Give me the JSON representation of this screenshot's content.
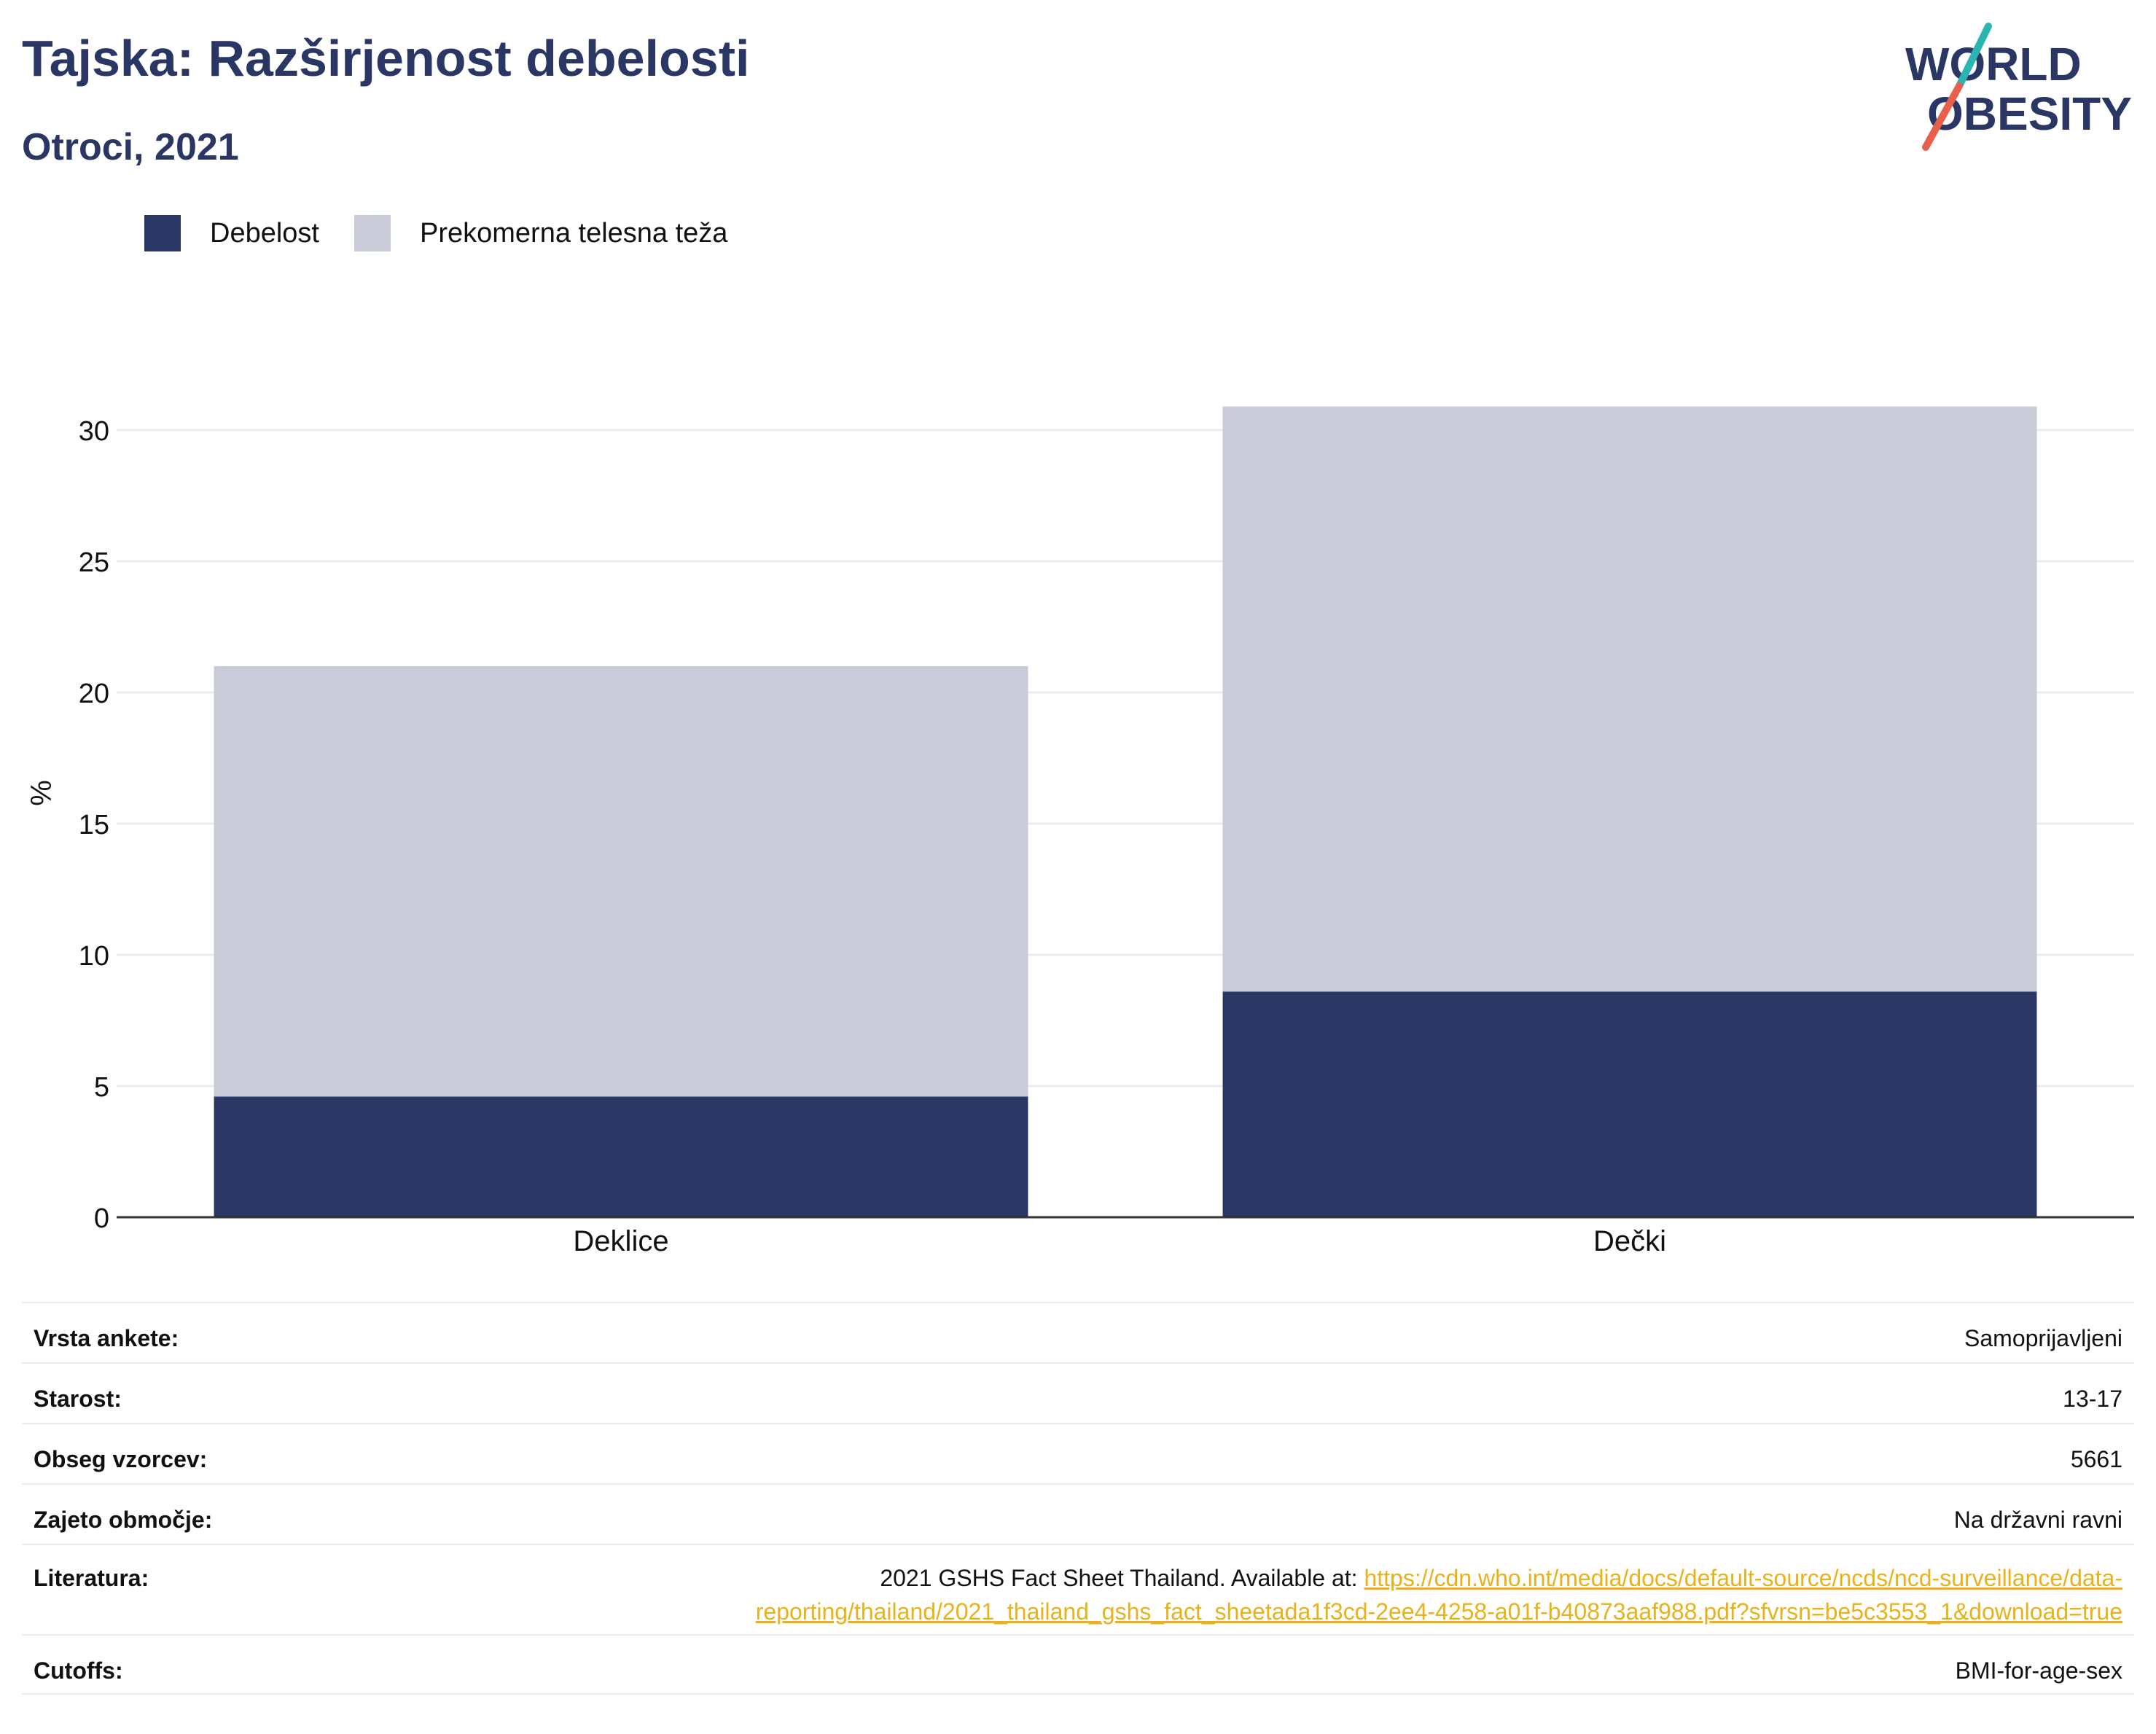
{
  "header": {
    "title": "Tajska: Razširjenost debelosti",
    "subtitle": "Otroci, 2021"
  },
  "logo": {
    "line1": "WORLD",
    "line2": "OBESITY",
    "text_color": "#2a3663",
    "slash_colors": [
      "#2bb5b0",
      "#e8604c"
    ]
  },
  "legend": {
    "items": [
      {
        "label": "Debelost",
        "color": "#2a3663"
      },
      {
        "label": "Prekomerna telesna teža",
        "color": "#c9ccd8"
      }
    ]
  },
  "chart_data": {
    "type": "bar",
    "stacked": true,
    "categories": [
      "Deklice",
      "Dečki"
    ],
    "series": [
      {
        "name": "Debelost",
        "values": [
          4.6,
          8.6
        ],
        "color": "#2a3663"
      },
      {
        "name": "Prekomerna telesna teža",
        "values": [
          16.4,
          22.3
        ],
        "color": "#c9ccd8"
      }
    ],
    "ylabel": "%",
    "ylim": [
      0,
      32
    ],
    "yticks": [
      0,
      5,
      10,
      15,
      20,
      25,
      30
    ],
    "grid": true,
    "legend_position": "top-left"
  },
  "info": {
    "rows": [
      {
        "label": "Vrsta ankete:",
        "value": "Samoprijavljeni"
      },
      {
        "label": "Starost:",
        "value": "13-17"
      },
      {
        "label": "Obseg vzorcev:",
        "value": "5661"
      },
      {
        "label": "Zajeto območje:",
        "value": "Na državni ravni"
      },
      {
        "label": "Literatura:",
        "value_prefix": "2021 GSHS Fact Sheet Thailand. Available at: ",
        "link_line1": "https://cdn.who.int/media/docs/default-source/ncds/ncd-surveillance/data-",
        "link_line2": "reporting/thailand/2021_thailand_gshs_fact_sheetada1f3cd-2ee4-4258-a01f-b40873aaf988.pdf?sfvrsn=be5c3553_1&download=true"
      },
      {
        "label": "Cutoffs:",
        "value": "BMI-for-age-sex"
      }
    ]
  }
}
